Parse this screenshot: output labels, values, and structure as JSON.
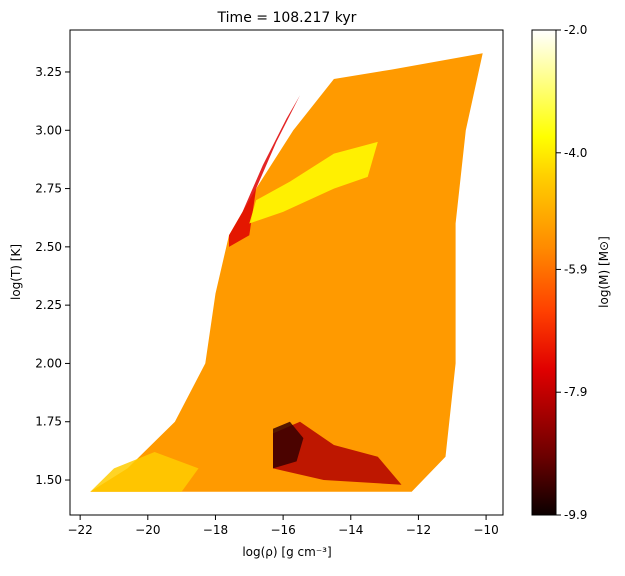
{
  "chart_data": {
    "type": "scatter",
    "title": "Time = 108.217 kyr",
    "xlabel": "log(ρ) [g cm⁻³]",
    "ylabel": "log(T) [K]",
    "xlim": [
      -22.3,
      -9.5
    ],
    "ylim": [
      1.35,
      3.43
    ],
    "x_ticks": [
      -22,
      -20,
      -18,
      -16,
      -14,
      -12,
      -10
    ],
    "y_ticks": [
      1.5,
      1.75,
      2.0,
      2.25,
      2.5,
      2.75,
      3.0,
      3.25
    ],
    "colormap": "hot",
    "colorbar": {
      "label": "log(M) [M⊙]",
      "range": [
        -9.9,
        -2.0
      ],
      "ticks": [
        "-2.0",
        "-4.0",
        "-5.9",
        "-7.9",
        "-9.9"
      ]
    },
    "grid": false,
    "regions": [
      {
        "name": "main-cloud",
        "outline": [
          [
            -21.7,
            1.45
          ],
          [
            -12.2,
            1.45
          ],
          [
            -11.2,
            1.6
          ],
          [
            -10.9,
            2.0
          ],
          [
            -10.9,
            2.6
          ],
          [
            -10.6,
            3.0
          ],
          [
            -10.1,
            3.33
          ],
          [
            -12.8,
            3.26
          ],
          [
            -14.5,
            3.22
          ],
          [
            -15.7,
            3.0
          ],
          [
            -16.8,
            2.75
          ],
          [
            -17.6,
            2.55
          ],
          [
            -18.0,
            2.3
          ],
          [
            -18.3,
            2.0
          ],
          [
            -19.2,
            1.75
          ],
          [
            -20.6,
            1.55
          ]
        ],
        "logM": -5.2
      },
      {
        "name": "dense-low-T-core",
        "outline": [
          [
            -16.3,
            1.55
          ],
          [
            -14.8,
            1.5
          ],
          [
            -12.5,
            1.48
          ],
          [
            -13.2,
            1.6
          ],
          [
            -14.5,
            1.65
          ],
          [
            -15.5,
            1.75
          ],
          [
            -16.3,
            1.7
          ]
        ],
        "logM": -8.0
      },
      {
        "name": "cold-dense-clump",
        "outline": [
          [
            -16.3,
            1.55
          ],
          [
            -15.6,
            1.58
          ],
          [
            -15.4,
            1.68
          ],
          [
            -15.8,
            1.75
          ],
          [
            -16.3,
            1.72
          ]
        ],
        "logM": -9.4
      },
      {
        "name": "upper-left-ridge",
        "outline": [
          [
            -17.6,
            2.5
          ],
          [
            -17.0,
            2.55
          ],
          [
            -16.8,
            2.75
          ],
          [
            -16.2,
            2.95
          ],
          [
            -15.5,
            3.15
          ],
          [
            -15.9,
            3.05
          ],
          [
            -16.6,
            2.85
          ],
          [
            -17.2,
            2.65
          ],
          [
            -17.6,
            2.55
          ]
        ],
        "logM": -7.5
      },
      {
        "name": "yellow-band-mid",
        "outline": [
          [
            -17.0,
            2.6
          ],
          [
            -16.0,
            2.65
          ],
          [
            -14.5,
            2.75
          ],
          [
            -13.5,
            2.8
          ],
          [
            -13.2,
            2.95
          ],
          [
            -14.5,
            2.9
          ],
          [
            -15.8,
            2.78
          ],
          [
            -16.8,
            2.7
          ]
        ],
        "logM": -4.0
      },
      {
        "name": "low-density-tail",
        "outline": [
          [
            -21.7,
            1.45
          ],
          [
            -19.0,
            1.45
          ],
          [
            -18.5,
            1.55
          ],
          [
            -19.8,
            1.62
          ],
          [
            -21.0,
            1.55
          ]
        ],
        "logM": -4.6
      }
    ]
  }
}
